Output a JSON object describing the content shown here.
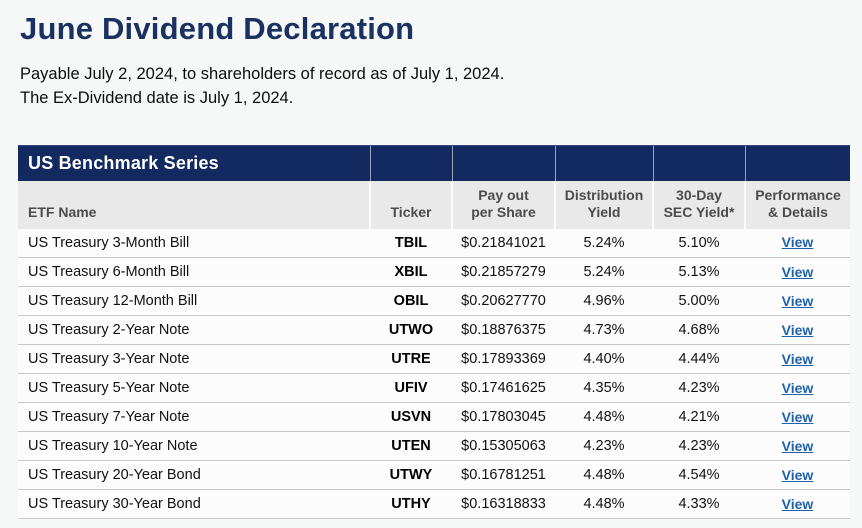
{
  "page": {
    "title": "June Dividend Declaration",
    "subtitle_line1": "Payable July 2, 2024, to shareholders of record as of July 1, 2024.",
    "subtitle_line2": "The Ex-Dividend date is July 1, 2024."
  },
  "table": {
    "band_title": "US Benchmark Series",
    "columns": [
      "ETF Name",
      "Ticker",
      "Pay out\nper Share",
      "Distribution\nYield",
      "30-Day\nSEC Yield*",
      "Performance\n& Details"
    ],
    "view_label": "View",
    "rows": [
      {
        "name": "US Treasury 3-Month Bill",
        "ticker": "TBIL",
        "payout": "$0.21841021",
        "dist_yield": "5.24%",
        "sec_yield": "5.10%"
      },
      {
        "name": "US Treasury 6-Month Bill",
        "ticker": "XBIL",
        "payout": "$0.21857279",
        "dist_yield": "5.24%",
        "sec_yield": "5.13%"
      },
      {
        "name": "US Treasury 12-Month Bill",
        "ticker": "OBIL",
        "payout": "$0.20627770",
        "dist_yield": "4.96%",
        "sec_yield": "5.00%"
      },
      {
        "name": "US Treasury 2-Year Note",
        "ticker": "UTWO",
        "payout": "$0.18876375",
        "dist_yield": "4.73%",
        "sec_yield": "4.68%"
      },
      {
        "name": "US Treasury 3-Year Note",
        "ticker": "UTRE",
        "payout": "$0.17893369",
        "dist_yield": "4.40%",
        "sec_yield": "4.44%"
      },
      {
        "name": "US Treasury 5-Year Note",
        "ticker": "UFIV",
        "payout": "$0.17461625",
        "dist_yield": "4.35%",
        "sec_yield": "4.23%"
      },
      {
        "name": "US Treasury 7-Year Note",
        "ticker": "USVN",
        "payout": "$0.17803045",
        "dist_yield": "4.48%",
        "sec_yield": "4.21%"
      },
      {
        "name": "US Treasury 10-Year Note",
        "ticker": "UTEN",
        "payout": "$0.15305063",
        "dist_yield": "4.23%",
        "sec_yield": "4.23%"
      },
      {
        "name": "US Treasury 20-Year Bond",
        "ticker": "UTWY",
        "payout": "$0.16781251",
        "dist_yield": "4.48%",
        "sec_yield": "4.54%"
      },
      {
        "name": "US Treasury 30-Year Bond",
        "ticker": "UTHY",
        "payout": "$0.16318833",
        "dist_yield": "4.48%",
        "sec_yield": "4.33%"
      }
    ]
  },
  "colors": {
    "title_navy": "#1b3161",
    "band_navy": "#122a60",
    "header_gray": "#e9e9e9",
    "link_blue": "#1f61ad",
    "page_background": "#f6f7f7"
  }
}
